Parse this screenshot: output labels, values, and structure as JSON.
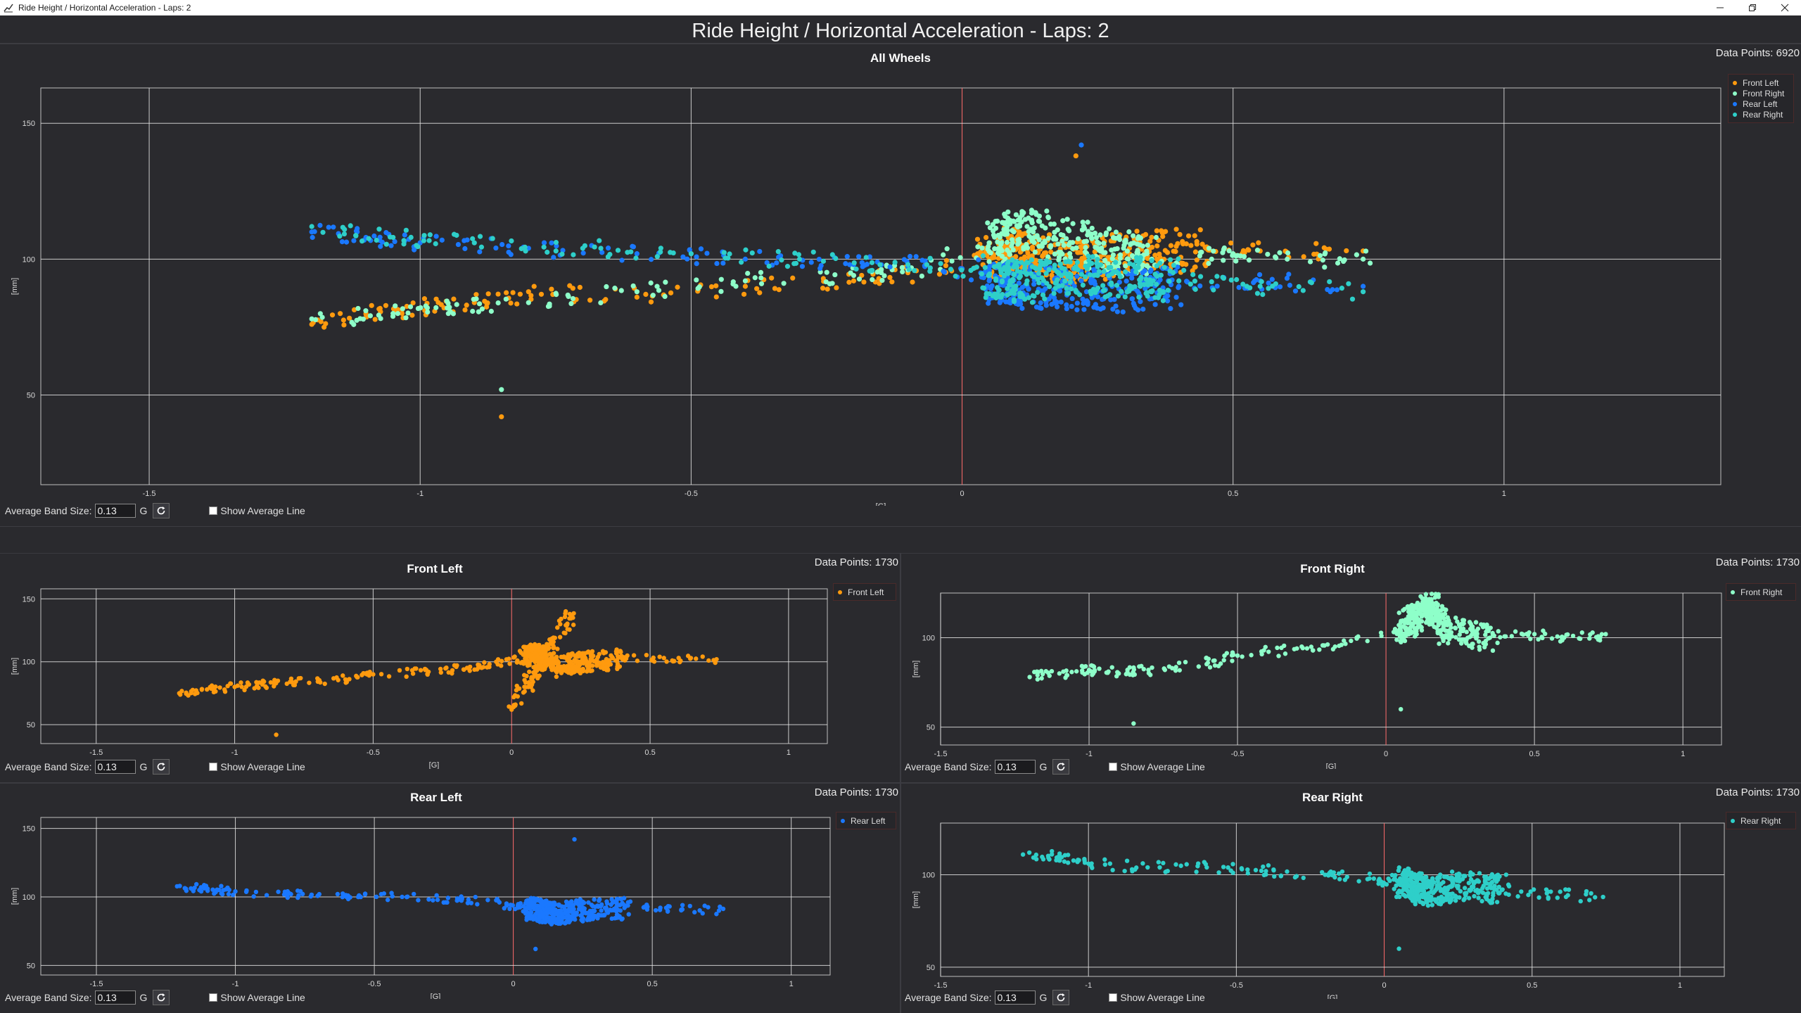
{
  "window": {
    "title": "Ride Height / Horizontal Acceleration - Laps: 2",
    "app_icon": "chart-app-icon"
  },
  "header": {
    "title": "Ride Height / Horizontal Acceleration - Laps: 2"
  },
  "colors": {
    "front_left": "#ff9a0e",
    "front_right": "#8effc9",
    "rear_left": "#1a78ff",
    "rear_right": "#2ecfc9",
    "zero_line": "#ff6b6b",
    "grid": "#e6e6e6"
  },
  "controls": {
    "band_label": "Average Band Size:",
    "band_value": "0.13",
    "unit": "G",
    "avg_line_label": "Show Average Line",
    "refresh_icon": "refresh-icon"
  },
  "panels": [
    {
      "id": "all",
      "title": "All Wheels",
      "points_label": "Data Points: 6920",
      "legend": [
        "Front Left",
        "Front Right",
        "Rear Left",
        "Rear Right"
      ]
    },
    {
      "id": "fl",
      "title": "Front Left",
      "points_label": "Data Points: 1730",
      "legend": [
        "Front Left"
      ]
    },
    {
      "id": "fr",
      "title": "Front Right",
      "points_label": "Data Points: 1730",
      "legend": [
        "Front Right"
      ]
    },
    {
      "id": "rl",
      "title": "Rear Left",
      "points_label": "Data Points: 1730",
      "legend": [
        "Rear Left"
      ]
    },
    {
      "id": "rr",
      "title": "Rear Right",
      "points_label": "Data Points: 1730",
      "legend": [
        "Rear Right"
      ]
    }
  ],
  "chart_data": [
    {
      "type": "scatter",
      "title": "All Wheels",
      "xlabel": "[G]",
      "ylabel": "[mm]",
      "xlim": [
        -1.7,
        1.4
      ],
      "ylim": [
        17,
        163
      ],
      "xticks": [
        "-1.5",
        "-1",
        "-0.5",
        "0",
        "0.5",
        "1"
      ],
      "yticks": [
        "50",
        "100",
        "150"
      ],
      "grid": true,
      "legend": "top-right",
      "series": [
        {
          "name": "Front Left",
          "points": [
            [
              -1.2,
              76
            ],
            [
              -1.1,
              80
            ],
            [
              -1.0,
              82
            ],
            [
              -0.9,
              84
            ],
            [
              -0.8,
              88
            ],
            [
              -0.6,
              86
            ],
            [
              -0.4,
              90
            ],
            [
              -0.2,
              92
            ],
            [
              -0.1,
              95
            ],
            [
              0.05,
              100
            ],
            [
              0.1,
              104
            ],
            [
              0.2,
              98
            ],
            [
              0.3,
              102
            ],
            [
              0.45,
              104
            ],
            [
              0.55,
              103
            ],
            [
              0.74,
              103
            ],
            [
              -0.85,
              42
            ],
            [
              0.21,
              138
            ]
          ]
        },
        {
          "name": "Front Right",
          "points": [
            [
              -1.2,
              78
            ],
            [
              -1.05,
              80
            ],
            [
              -0.95,
              82
            ],
            [
              -0.8,
              84
            ],
            [
              -0.6,
              88
            ],
            [
              -0.4,
              92
            ],
            [
              -0.2,
              94
            ],
            [
              -0.1,
              96
            ],
            [
              0.05,
              106
            ],
            [
              0.12,
              112
            ],
            [
              0.25,
              104
            ],
            [
              0.35,
              100
            ],
            [
              0.5,
              102
            ],
            [
              0.6,
              100
            ],
            [
              0.74,
              100
            ],
            [
              -0.85,
              52
            ]
          ]
        },
        {
          "name": "Rear Left",
          "points": [
            [
              -1.2,
              110
            ],
            [
              -1.1,
              108
            ],
            [
              -1.0,
              106
            ],
            [
              -0.8,
              104
            ],
            [
              -0.6,
              102
            ],
            [
              -0.4,
              100
            ],
            [
              -0.2,
              98
            ],
            [
              -0.1,
              98
            ],
            [
              0.05,
              92
            ],
            [
              0.12,
              90
            ],
            [
              0.25,
              88
            ],
            [
              0.4,
              90
            ],
            [
              0.55,
              92
            ],
            [
              0.74,
              90
            ],
            [
              0.22,
              142
            ]
          ]
        },
        {
          "name": "Rear Right",
          "points": [
            [
              -1.2,
              112
            ],
            [
              -1.05,
              108
            ],
            [
              -0.9,
              106
            ],
            [
              -0.7,
              104
            ],
            [
              -0.5,
              102
            ],
            [
              -0.3,
              100
            ],
            [
              -0.1,
              98
            ],
            [
              0.05,
              94
            ],
            [
              0.12,
              92
            ],
            [
              0.25,
              94
            ],
            [
              0.4,
              92
            ],
            [
              0.55,
              90
            ],
            [
              0.74,
              88
            ]
          ]
        }
      ]
    },
    {
      "type": "scatter",
      "title": "Front Left",
      "xlabel": "[G]",
      "ylabel": "[mm]",
      "xlim": [
        -1.7,
        1.14
      ],
      "ylim": [
        35,
        158
      ],
      "xticks": [
        "-1.5",
        "-1",
        "-0.5",
        "0",
        "0.5",
        "1"
      ],
      "yticks": [
        "50",
        "100",
        "150"
      ],
      "grid": true,
      "series": [
        {
          "name": "Front Left",
          "points": [
            [
              -1.2,
              75
            ],
            [
              -1.1,
              78
            ],
            [
              -1.0,
              80
            ],
            [
              -0.9,
              82
            ],
            [
              -0.8,
              84
            ],
            [
              -0.6,
              86
            ],
            [
              -0.5,
              90
            ],
            [
              -0.3,
              92
            ],
            [
              -0.15,
              96
            ],
            [
              -0.05,
              98
            ],
            [
              0.05,
              104
            ],
            [
              0.1,
              108
            ],
            [
              0.15,
              96
            ],
            [
              0.25,
              100
            ],
            [
              0.4,
              102
            ],
            [
              0.55,
              103
            ],
            [
              0.74,
              102
            ],
            [
              -0.85,
              42
            ],
            [
              0.0,
              62
            ],
            [
              0.21,
              138
            ]
          ]
        }
      ]
    },
    {
      "type": "scatter",
      "title": "Front Right",
      "xlabel": "[G]",
      "ylabel": "[mm]",
      "xlim": [
        -1.5,
        1.13
      ],
      "ylim": [
        40,
        125
      ],
      "xticks": [
        "-1.5",
        "-1",
        "-0.5",
        "0",
        "0.5",
        "1"
      ],
      "yticks": [
        "50",
        "100"
      ],
      "grid": true,
      "series": [
        {
          "name": "Front Right",
          "points": [
            [
              -1.2,
              78
            ],
            [
              -1.1,
              80
            ],
            [
              -1.0,
              82
            ],
            [
              -0.9,
              80
            ],
            [
              -0.8,
              82
            ],
            [
              -0.6,
              86
            ],
            [
              -0.5,
              90
            ],
            [
              -0.3,
              94
            ],
            [
              -0.15,
              96
            ],
            [
              0.05,
              104
            ],
            [
              0.1,
              112
            ],
            [
              0.15,
              118
            ],
            [
              0.2,
              104
            ],
            [
              0.35,
              100
            ],
            [
              0.5,
              102
            ],
            [
              0.6,
              100
            ],
            [
              0.74,
              102
            ],
            [
              -0.85,
              52
            ],
            [
              0.05,
              60
            ]
          ]
        }
      ]
    },
    {
      "type": "scatter",
      "title": "Rear Left",
      "xlabel": "[G]",
      "ylabel": "[mm]",
      "xlim": [
        -1.7,
        1.14
      ],
      "ylim": [
        43,
        158
      ],
      "xticks": [
        "-1.5",
        "-1",
        "-0.5",
        "0",
        "0.5",
        "1"
      ],
      "yticks": [
        "50",
        "100",
        "150"
      ],
      "grid": true,
      "series": [
        {
          "name": "Rear Left",
          "points": [
            [
              -1.2,
              108
            ],
            [
              -1.1,
              106
            ],
            [
              -1.0,
              104
            ],
            [
              -0.8,
              102
            ],
            [
              -0.6,
              100
            ],
            [
              -0.4,
              100
            ],
            [
              -0.2,
              98
            ],
            [
              -0.05,
              96
            ],
            [
              0.05,
              92
            ],
            [
              0.1,
              90
            ],
            [
              0.15,
              88
            ],
            [
              0.25,
              90
            ],
            [
              0.4,
              92
            ],
            [
              0.55,
              92
            ],
            [
              0.74,
              90
            ],
            [
              0.22,
              142
            ],
            [
              0.08,
              62
            ]
          ]
        }
      ]
    },
    {
      "type": "scatter",
      "title": "Rear Right",
      "xlabel": "[G]",
      "ylabel": "[mm]",
      "xlim": [
        -1.5,
        1.15
      ],
      "ylim": [
        45,
        128
      ],
      "xticks": [
        "-1.5",
        "-1",
        "-0.5",
        "0",
        "0.5",
        "1"
      ],
      "yticks": [
        "50",
        "100"
      ],
      "grid": true,
      "series": [
        {
          "name": "Rear Right",
          "points": [
            [
              -1.2,
              112
            ],
            [
              -1.1,
              110
            ],
            [
              -1.0,
              106
            ],
            [
              -0.8,
              104
            ],
            [
              -0.6,
              104
            ],
            [
              -0.4,
              102
            ],
            [
              -0.2,
              100
            ],
            [
              -0.05,
              98
            ],
            [
              0.05,
              96
            ],
            [
              0.1,
              94
            ],
            [
              0.15,
              90
            ],
            [
              0.25,
              94
            ],
            [
              0.4,
              92
            ],
            [
              0.55,
              90
            ],
            [
              0.74,
              88
            ],
            [
              0.05,
              60
            ]
          ]
        }
      ]
    }
  ]
}
